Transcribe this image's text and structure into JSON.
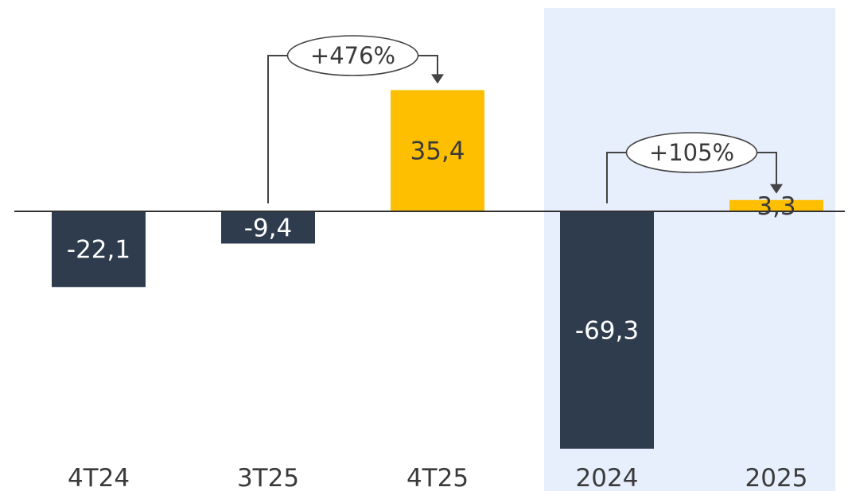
{
  "colors": {
    "negative": "#2e3c4e",
    "positive": "#fdbf00",
    "highlight_bg": "#e7eefc",
    "baseline": "#333333",
    "connector": "#444444",
    "label_light": "#ffffff",
    "label_dark": "#3a3a3a"
  },
  "chart_data": {
    "type": "bar",
    "title": "",
    "xlabel": "",
    "ylabel": "",
    "categories": [
      "4T24",
      "3T25",
      "4T25",
      "2024",
      "2025"
    ],
    "values": [
      -22.1,
      -9.4,
      35.4,
      -69.3,
      3.3
    ],
    "value_labels": [
      "-22,1",
      "-9,4",
      "35,4",
      "-69,3",
      "3,3"
    ],
    "highlighted_categories": [
      "2024",
      "2025"
    ],
    "grid": false,
    "legend": "none",
    "annotations": [
      {
        "from": "3T25",
        "to": "4T25",
        "text": "+476%"
      },
      {
        "from": "2024",
        "to": "2025",
        "text": "+105%"
      }
    ]
  }
}
